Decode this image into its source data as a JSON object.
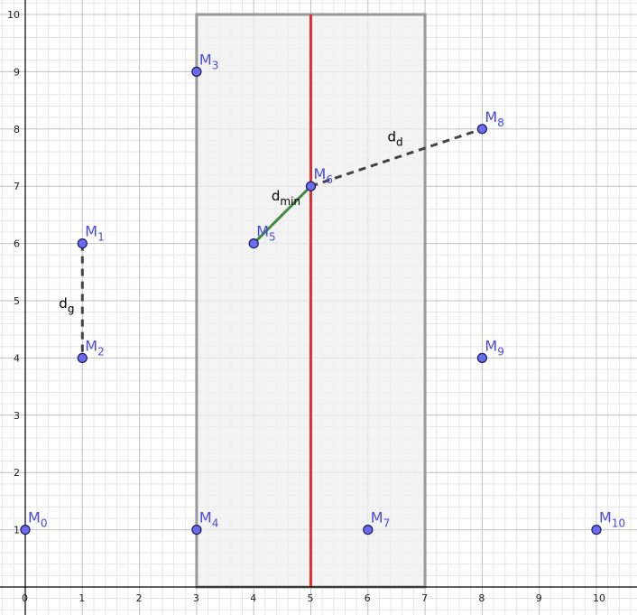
{
  "chart_data": {
    "type": "scatter",
    "xlim": [
      0,
      10.5
    ],
    "ylim": [
      0,
      10.5
    ],
    "x_ticks": [
      0,
      1,
      2,
      3,
      4,
      5,
      6,
      7,
      8,
      9,
      10
    ],
    "y_ticks": [
      1,
      2,
      3,
      4,
      5,
      6,
      7,
      8,
      9,
      10
    ],
    "grid": true,
    "points": [
      {
        "name": "M",
        "sub": "0",
        "x": 0,
        "y": 1
      },
      {
        "name": "M",
        "sub": "1",
        "x": 1,
        "y": 6
      },
      {
        "name": "M",
        "sub": "2",
        "x": 1,
        "y": 4
      },
      {
        "name": "M",
        "sub": "3",
        "x": 3,
        "y": 9
      },
      {
        "name": "M",
        "sub": "4",
        "x": 3,
        "y": 1
      },
      {
        "name": "M",
        "sub": "5",
        "x": 4,
        "y": 6
      },
      {
        "name": "M",
        "sub": "6",
        "x": 5,
        "y": 7
      },
      {
        "name": "M",
        "sub": "7",
        "x": 6,
        "y": 1
      },
      {
        "name": "M",
        "sub": "8",
        "x": 8,
        "y": 8
      },
      {
        "name": "M",
        "sub": "9",
        "x": 8,
        "y": 4
      },
      {
        "name": "M",
        "sub": "10",
        "x": 10,
        "y": 1
      }
    ],
    "strip": {
      "x_min": 3,
      "x_max": 7,
      "y_min": 0,
      "y_max": 10,
      "fill": "#efefef",
      "stroke": "#999999"
    },
    "dividing_line": {
      "x": 5,
      "y_min": 0,
      "y_max": 10,
      "color": "#e03030"
    },
    "segments": [
      {
        "from": [
          1,
          6
        ],
        "to": [
          1,
          4
        ],
        "style": "dashed",
        "color": "#444444",
        "label": "d",
        "label_sub": "g"
      },
      {
        "from": [
          4,
          6
        ],
        "to": [
          5,
          7
        ],
        "style": "solid",
        "color": "#3f8a3f",
        "label": "d",
        "label_sub": "min"
      },
      {
        "from": [
          5,
          7
        ],
        "to": [
          8,
          8
        ],
        "style": "dashed",
        "color": "#444444",
        "label": "d",
        "label_sub": "d"
      }
    ],
    "colors": {
      "point_fill": "#6b6bf0",
      "point_stroke": "#1a1a5a",
      "point_label": "#4a4adf",
      "green_label": "#1a6b1a"
    }
  }
}
